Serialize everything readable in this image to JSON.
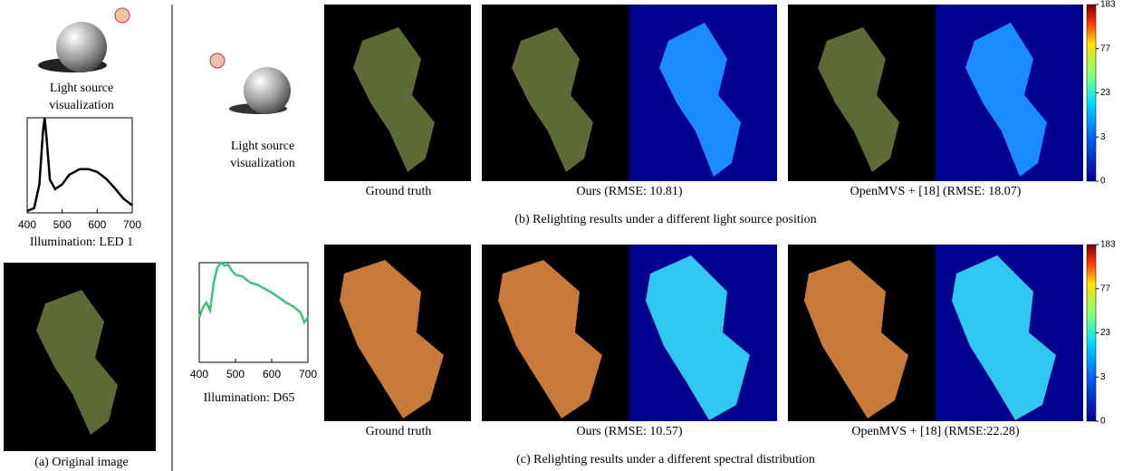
{
  "original": {
    "light_label": [
      "Light source",
      "visualization"
    ],
    "spectrum": {
      "x": [
        400,
        420,
        435,
        445,
        450,
        455,
        465,
        480,
        500,
        520,
        550,
        575,
        600,
        625,
        650,
        675,
        700
      ],
      "values": [
        0.02,
        0.05,
        0.3,
        0.85,
        1.0,
        0.8,
        0.35,
        0.25,
        0.3,
        0.4,
        0.46,
        0.46,
        0.43,
        0.36,
        0.26,
        0.15,
        0.08
      ],
      "xlim": [
        400,
        700
      ],
      "xticks": [
        400,
        500,
        600,
        700
      ],
      "color": "#000000"
    },
    "illumination": "Illumination: LED 1",
    "caption": "(a) Original image"
  },
  "relight_position": {
    "light_label": [
      "Light source",
      "visualization"
    ],
    "captions": [
      "Ground truth",
      "Ours (RMSE: 10.81)",
      "OpenMVS + [18] (RMSE: 18.07)"
    ],
    "colorbar_ticks": [
      183,
      77,
      23,
      3,
      0
    ],
    "caption": "(b) Relighting results under a different light source position"
  },
  "relight_spectrum": {
    "spectrum": {
      "x": [
        400,
        410,
        420,
        430,
        440,
        450,
        460,
        470,
        480,
        490,
        500,
        520,
        540,
        560,
        580,
        600,
        620,
        640,
        660,
        680,
        690,
        700
      ],
      "values": [
        0.45,
        0.55,
        0.6,
        0.52,
        0.8,
        0.95,
        1.0,
        0.97,
        0.98,
        0.92,
        0.88,
        0.86,
        0.8,
        0.78,
        0.74,
        0.7,
        0.65,
        0.6,
        0.56,
        0.5,
        0.4,
        0.45
      ],
      "xlim": [
        400,
        700
      ],
      "xticks": [
        400,
        500,
        600,
        700
      ],
      "color": "#3cc47a"
    },
    "illumination": "Illumination: D65",
    "captions": [
      "Ground truth",
      "Ours (RMSE: 10.57)",
      "OpenMVS + [18] (RMSE:22.28)"
    ],
    "colorbar_ticks": [
      183,
      77,
      23,
      3,
      0
    ],
    "caption": "(c) Relighting results under a different spectral distribution"
  }
}
